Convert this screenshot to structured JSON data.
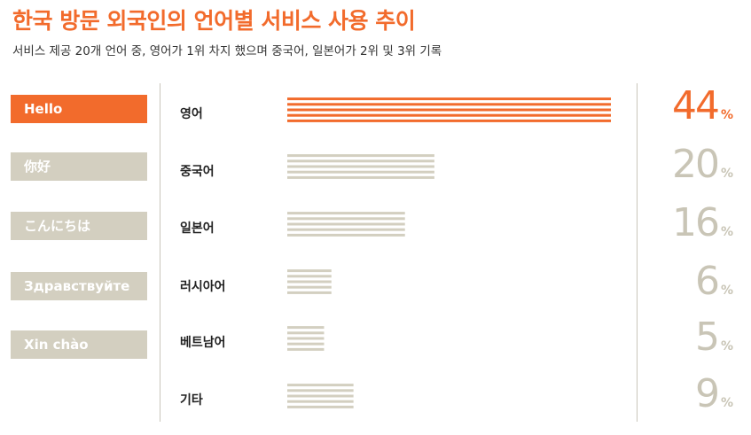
{
  "header": {
    "title": "한국 방문 외국인의 언어별 서비스 사용 추이",
    "subtitle": "서비스 제공 20개 언어 중, 영어가 1위 차지 했으며 중국어, 일본어가 2위 및 3위 기록"
  },
  "greetings": [
    "Hello",
    "你好",
    "こんにちは",
    "Здравствуйте",
    "Xin chào"
  ],
  "colors": {
    "accent": "#f26b2c",
    "muted": "#d3cfc0",
    "muted_text": "#c9c5b6"
  },
  "chart_data": {
    "type": "bar",
    "orientation": "horizontal",
    "categories": [
      "영어",
      "중국어",
      "일본어",
      "러시아어",
      "베트남어",
      "기타"
    ],
    "values": [
      44,
      20,
      16,
      6,
      5,
      9
    ],
    "value_labels": [
      "44",
      "20",
      "16",
      "6",
      "5",
      "9"
    ],
    "unit": "%",
    "highlight_index": 0,
    "xlim": [
      0,
      44
    ]
  }
}
